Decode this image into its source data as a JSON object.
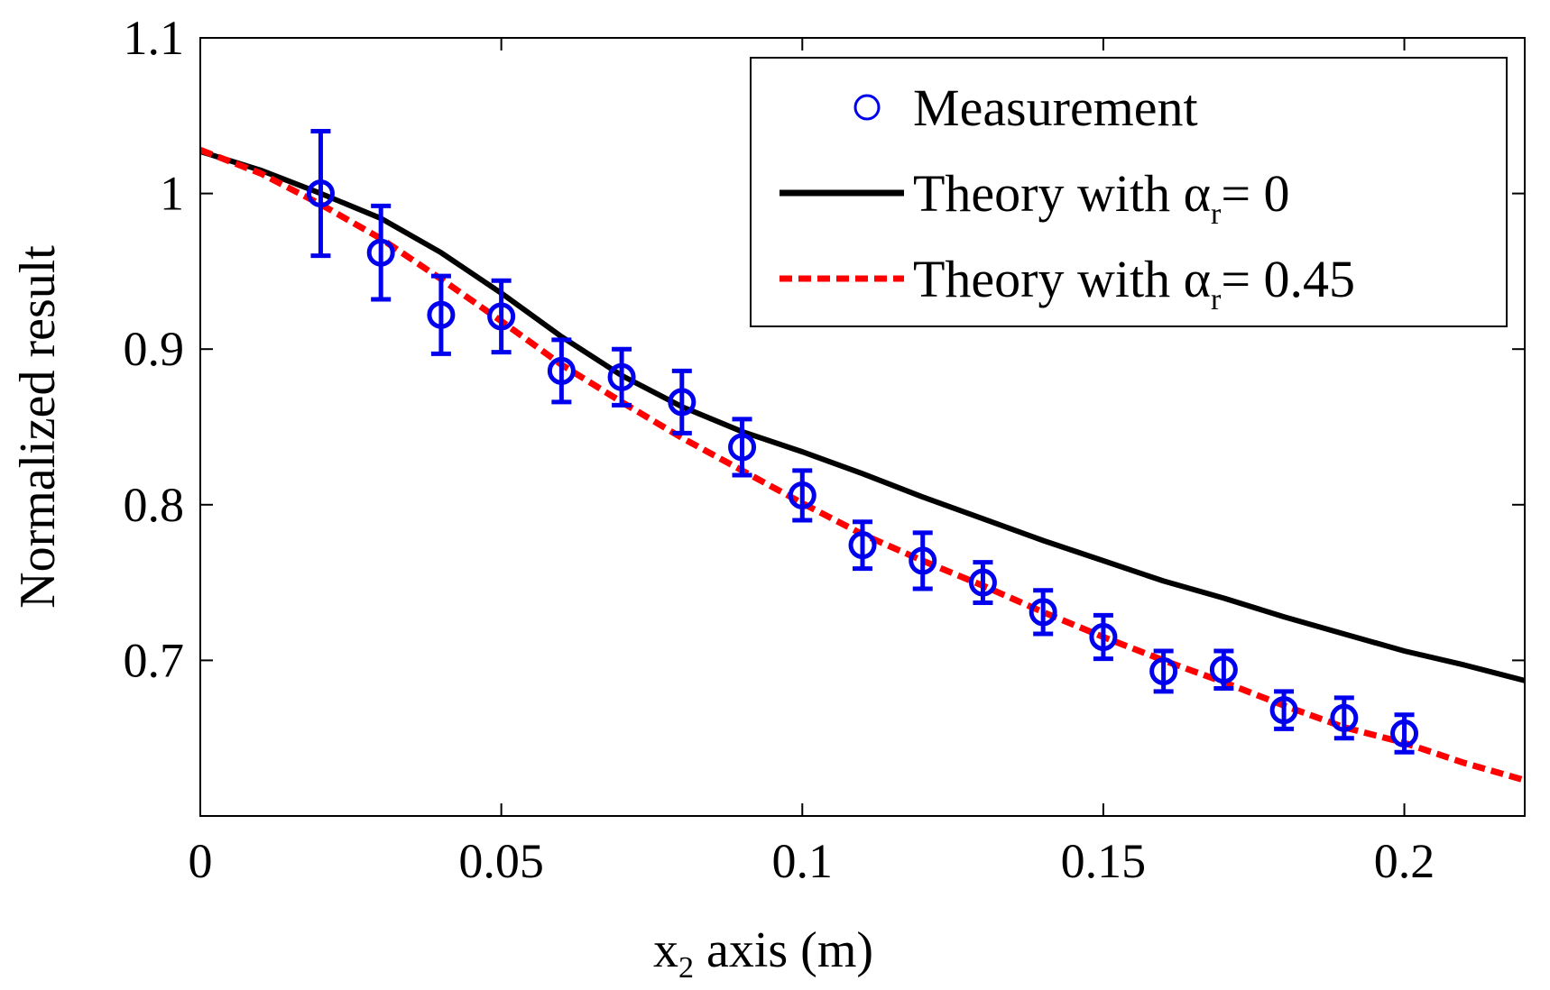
{
  "chart_data": {
    "type": "line",
    "title": "",
    "xlabel": {
      "pre": "x",
      "sub": "2",
      "post": " axis (m)"
    },
    "ylabel": "Normalized result",
    "xlim": [
      0,
      0.22
    ],
    "ylim": [
      0.6,
      1.1
    ],
    "x_ticks": [
      {
        "value": 0,
        "label": "0"
      },
      {
        "value": 0.05,
        "label": "0.05"
      },
      {
        "value": 0.1,
        "label": "0.1"
      },
      {
        "value": 0.15,
        "label": "0.15"
      },
      {
        "value": 0.2,
        "label": "0.2"
      }
    ],
    "y_ticks": [
      {
        "value": 0.7,
        "label": "0.7"
      },
      {
        "value": 0.8,
        "label": "0.8"
      },
      {
        "value": 0.9,
        "label": "0.9"
      },
      {
        "value": 1.0,
        "label": "1"
      },
      {
        "value": 1.1,
        "label": "1.1"
      }
    ],
    "grid": false,
    "legend_position": "top-right",
    "legend": [
      {
        "series": "measurement",
        "parts": [
          "Measurement"
        ]
      },
      {
        "series": "theory0",
        "parts": [
          "Theory with α",
          "r",
          "= 0"
        ]
      },
      {
        "series": "theory045",
        "parts": [
          "Theory with α",
          "r",
          "= 0.45"
        ]
      }
    ],
    "measurement": {
      "name": "Measurement",
      "color": "#0000ee",
      "points": [
        {
          "x": 0.02,
          "y": 1.0,
          "err": 0.04
        },
        {
          "x": 0.03,
          "y": 0.962,
          "err": 0.03
        },
        {
          "x": 0.04,
          "y": 0.922,
          "err": 0.025
        },
        {
          "x": 0.05,
          "y": 0.921,
          "err": 0.023
        },
        {
          "x": 0.06,
          "y": 0.886,
          "err": 0.02
        },
        {
          "x": 0.07,
          "y": 0.882,
          "err": 0.018
        },
        {
          "x": 0.08,
          "y": 0.866,
          "err": 0.02
        },
        {
          "x": 0.09,
          "y": 0.837,
          "err": 0.018
        },
        {
          "x": 0.1,
          "y": 0.806,
          "err": 0.016
        },
        {
          "x": 0.11,
          "y": 0.774,
          "err": 0.015
        },
        {
          "x": 0.12,
          "y": 0.764,
          "err": 0.018
        },
        {
          "x": 0.13,
          "y": 0.75,
          "err": 0.013
        },
        {
          "x": 0.14,
          "y": 0.731,
          "err": 0.014
        },
        {
          "x": 0.15,
          "y": 0.715,
          "err": 0.014
        },
        {
          "x": 0.16,
          "y": 0.693,
          "err": 0.013
        },
        {
          "x": 0.17,
          "y": 0.694,
          "err": 0.012
        },
        {
          "x": 0.18,
          "y": 0.668,
          "err": 0.012
        },
        {
          "x": 0.19,
          "y": 0.663,
          "err": 0.013
        },
        {
          "x": 0.2,
          "y": 0.653,
          "err": 0.012
        }
      ]
    },
    "series": [
      {
        "key": "theory0",
        "name": "Theory with αr = 0",
        "color": "#000000",
        "style": "solid",
        "x": [
          0,
          0.01,
          0.02,
          0.03,
          0.04,
          0.05,
          0.06,
          0.07,
          0.08,
          0.09,
          0.1,
          0.11,
          0.12,
          0.13,
          0.14,
          0.15,
          0.16,
          0.17,
          0.18,
          0.19,
          0.2,
          0.21,
          0.22
        ],
        "y": [
          1.027,
          1.015,
          1.0,
          0.984,
          0.962,
          0.936,
          0.908,
          0.883,
          0.863,
          0.847,
          0.834,
          0.82,
          0.805,
          0.791,
          0.777,
          0.764,
          0.751,
          0.74,
          0.728,
          0.717,
          0.706,
          0.697,
          0.687
        ]
      },
      {
        "key": "theory045",
        "name": "Theory with αr = 0.45",
        "color": "#ff0000",
        "style": "dashed",
        "x": [
          0,
          0.01,
          0.02,
          0.03,
          0.04,
          0.05,
          0.06,
          0.07,
          0.08,
          0.09,
          0.1,
          0.11,
          0.12,
          0.13,
          0.14,
          0.15,
          0.16,
          0.17,
          0.18,
          0.19,
          0.2,
          0.21,
          0.22
        ],
        "y": [
          1.028,
          1.013,
          0.993,
          0.971,
          0.945,
          0.918,
          0.89,
          0.866,
          0.843,
          0.822,
          0.801,
          0.781,
          0.764,
          0.748,
          0.731,
          0.715,
          0.7,
          0.686,
          0.671,
          0.657,
          0.647,
          0.634,
          0.623
        ]
      }
    ]
  }
}
